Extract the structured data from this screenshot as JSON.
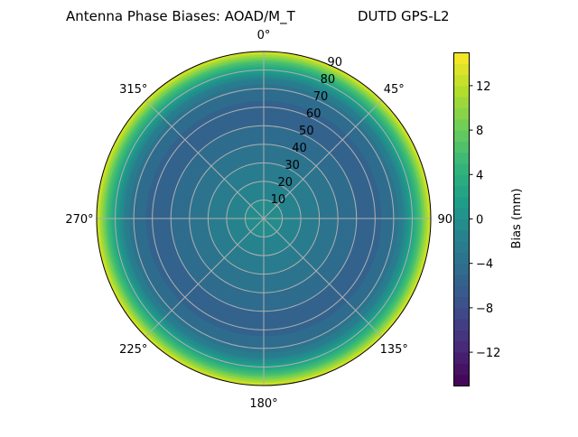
{
  "chart_data": {
    "type": "polar-contour",
    "title_left": "Antenna Phase Biases: AOAD/M_T",
    "title_right": "DUTD GPS-L2",
    "theta_zero": "top",
    "theta_direction": "clockwise",
    "theta_ticks": [
      "0°",
      "45°",
      "90°",
      "135°",
      "180°",
      "225°",
      "270°",
      "315°"
    ],
    "theta_values": [
      0,
      45,
      90,
      135,
      180,
      225,
      270,
      315
    ],
    "r_ticks": [
      "10",
      "20",
      "30",
      "40",
      "50",
      "60",
      "70",
      "80",
      "90"
    ],
    "r_values": [
      10,
      20,
      30,
      40,
      50,
      60,
      70,
      80,
      90
    ],
    "rlim": [
      0,
      90
    ],
    "grid": true,
    "radial_profile": {
      "r": [
        0,
        10,
        20,
        30,
        40,
        50,
        60,
        70,
        75,
        80,
        85,
        90
      ],
      "bias": [
        0,
        -1,
        -2,
        -3,
        -4,
        -5,
        -5.5,
        -4,
        -2,
        2,
        7,
        14
      ]
    },
    "colormap": "viridis",
    "levels_step": 1,
    "colorbar": {
      "label": "Bias (mm)",
      "range": [
        -15,
        15
      ],
      "ticks": [
        "−12",
        "−8",
        "−4",
        "0",
        "4",
        "8",
        "12"
      ],
      "tick_values": [
        -12,
        -8,
        -4,
        0,
        4,
        8,
        12
      ],
      "position": "right"
    }
  }
}
